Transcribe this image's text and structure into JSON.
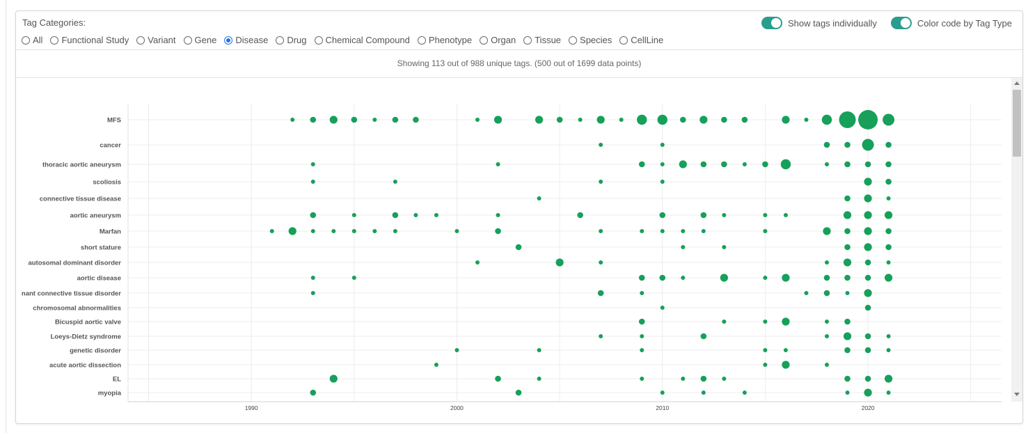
{
  "filters": {
    "label": "Tag Categories:",
    "options": [
      "All",
      "Functional Study",
      "Variant",
      "Gene",
      "Disease",
      "Drug",
      "Chemical Compound",
      "Phenotype",
      "Organ",
      "Tissue",
      "Species",
      "CellLine"
    ],
    "selected": "Disease"
  },
  "toggles": {
    "show_individually": {
      "label": "Show tags individually",
      "on": true
    },
    "color_code": {
      "label": "Color code by Tag Type",
      "on": true
    }
  },
  "summary": "Showing 113 out of 988 unique tags. (500 out of 1699 data points)",
  "colors": {
    "accent": "#2a9d8f",
    "dot": "#16a05a",
    "radio": "#1e73e8"
  },
  "chart_data": {
    "type": "scatter",
    "x_ticks": [
      1990,
      2000,
      2010,
      2020
    ],
    "xlim": [
      1984,
      2026.5
    ],
    "grid": true,
    "categories": [
      "MFS",
      "cancer",
      "thoracic aortic aneurysm",
      "scoliosis",
      "connective tissue disease",
      "aortic aneurysm",
      "Marfan",
      "short stature",
      "autosomal dominant disorder",
      "aortic disease",
      "nant connective tissue disorder",
      "chromosomal abnormalities",
      "Bicuspid aortic valve",
      "Loeys-Dietz syndrome",
      "genetic disorder",
      "acute aortic dissection",
      "EL",
      "myopia"
    ],
    "series": [
      {
        "category": "MFS",
        "points": [
          [
            1992,
            1
          ],
          [
            1993,
            2
          ],
          [
            1994,
            3
          ],
          [
            1995,
            2
          ],
          [
            1996,
            1
          ],
          [
            1997,
            2
          ],
          [
            1998,
            2
          ],
          [
            2001,
            1
          ],
          [
            2002,
            3
          ],
          [
            2004,
            3
          ],
          [
            2005,
            2
          ],
          [
            2006,
            1
          ],
          [
            2007,
            3
          ],
          [
            2008,
            1
          ],
          [
            2009,
            4
          ],
          [
            2010,
            4
          ],
          [
            2011,
            2
          ],
          [
            2012,
            3
          ],
          [
            2013,
            2
          ],
          [
            2014,
            2
          ],
          [
            2016,
            3
          ],
          [
            2017,
            1
          ],
          [
            2018,
            4
          ],
          [
            2019,
            7
          ],
          [
            2020,
            8
          ],
          [
            2021,
            5
          ]
        ]
      },
      {
        "category": "cancer",
        "points": [
          [
            2007,
            1
          ],
          [
            2010,
            1
          ],
          [
            2018,
            2
          ],
          [
            2019,
            2
          ],
          [
            2020,
            5
          ],
          [
            2021,
            2
          ]
        ]
      },
      {
        "category": "thoracic aortic aneurysm",
        "points": [
          [
            1993,
            1
          ],
          [
            2002,
            1
          ],
          [
            2009,
            2
          ],
          [
            2010,
            1
          ],
          [
            2011,
            3
          ],
          [
            2012,
            2
          ],
          [
            2013,
            2
          ],
          [
            2014,
            1
          ],
          [
            2015,
            2
          ],
          [
            2016,
            4
          ],
          [
            2018,
            1
          ],
          [
            2019,
            2
          ],
          [
            2020,
            2
          ],
          [
            2021,
            2
          ]
        ]
      },
      {
        "category": "scoliosis",
        "points": [
          [
            1993,
            1
          ],
          [
            1997,
            1
          ],
          [
            2007,
            1
          ],
          [
            2010,
            1
          ],
          [
            2020,
            3
          ],
          [
            2021,
            2
          ]
        ]
      },
      {
        "category": "connective tissue disease",
        "points": [
          [
            2004,
            1
          ],
          [
            2019,
            2
          ],
          [
            2020,
            3
          ],
          [
            2021,
            1
          ]
        ]
      },
      {
        "category": "aortic aneurysm",
        "points": [
          [
            1993,
            2
          ],
          [
            1995,
            1
          ],
          [
            1997,
            2
          ],
          [
            1998,
            1
          ],
          [
            1999,
            1
          ],
          [
            2002,
            1
          ],
          [
            2006,
            2
          ],
          [
            2010,
            2
          ],
          [
            2012,
            2
          ],
          [
            2013,
            1
          ],
          [
            2015,
            1
          ],
          [
            2016,
            1
          ],
          [
            2019,
            3
          ],
          [
            2020,
            3
          ],
          [
            2021,
            3
          ]
        ]
      },
      {
        "category": "Marfan",
        "points": [
          [
            1991,
            1
          ],
          [
            1992,
            3
          ],
          [
            1993,
            1
          ],
          [
            1994,
            1
          ],
          [
            1995,
            1
          ],
          [
            1996,
            1
          ],
          [
            1997,
            1
          ],
          [
            2000,
            1
          ],
          [
            2002,
            2
          ],
          [
            2007,
            1
          ],
          [
            2009,
            1
          ],
          [
            2010,
            1
          ],
          [
            2011,
            1
          ],
          [
            2012,
            1
          ],
          [
            2015,
            1
          ],
          [
            2018,
            3
          ],
          [
            2019,
            2
          ],
          [
            2020,
            3
          ],
          [
            2021,
            2
          ]
        ]
      },
      {
        "category": "short stature",
        "points": [
          [
            2003,
            2
          ],
          [
            2011,
            1
          ],
          [
            2013,
            1
          ],
          [
            2019,
            2
          ],
          [
            2020,
            3
          ],
          [
            2021,
            2
          ]
        ]
      },
      {
        "category": "autosomal dominant disorder",
        "points": [
          [
            2001,
            1
          ],
          [
            2005,
            3
          ],
          [
            2007,
            1
          ],
          [
            2018,
            1
          ],
          [
            2019,
            3
          ],
          [
            2020,
            2
          ],
          [
            2021,
            1
          ]
        ]
      },
      {
        "category": "aortic disease",
        "points": [
          [
            1993,
            1
          ],
          [
            1995,
            1
          ],
          [
            2009,
            2
          ],
          [
            2010,
            2
          ],
          [
            2011,
            1
          ],
          [
            2013,
            3
          ],
          [
            2015,
            1
          ],
          [
            2016,
            3
          ],
          [
            2018,
            2
          ],
          [
            2019,
            2
          ],
          [
            2020,
            2
          ],
          [
            2021,
            3
          ]
        ]
      },
      {
        "category": "nant connective tissue disorder",
        "points": [
          [
            1993,
            1
          ],
          [
            2007,
            2
          ],
          [
            2009,
            1
          ],
          [
            2017,
            1
          ],
          [
            2018,
            2
          ],
          [
            2019,
            1
          ],
          [
            2020,
            3
          ]
        ]
      },
      {
        "category": "chromosomal abnormalities",
        "points": [
          [
            2010,
            1
          ],
          [
            2020,
            2
          ]
        ]
      },
      {
        "category": "Bicuspid aortic valve",
        "points": [
          [
            2009,
            2
          ],
          [
            2013,
            1
          ],
          [
            2015,
            1
          ],
          [
            2016,
            3
          ],
          [
            2018,
            1
          ],
          [
            2019,
            2
          ]
        ]
      },
      {
        "category": "Loeys-Dietz syndrome",
        "points": [
          [
            2007,
            1
          ],
          [
            2009,
            1
          ],
          [
            2012,
            2
          ],
          [
            2018,
            1
          ],
          [
            2019,
            3
          ],
          [
            2020,
            2
          ],
          [
            2021,
            1
          ]
        ]
      },
      {
        "category": "genetic disorder",
        "points": [
          [
            2000,
            1
          ],
          [
            2004,
            1
          ],
          [
            2009,
            1
          ],
          [
            2015,
            1
          ],
          [
            2016,
            1
          ],
          [
            2019,
            2
          ],
          [
            2020,
            2
          ],
          [
            2021,
            1
          ]
        ]
      },
      {
        "category": "acute aortic dissection",
        "points": [
          [
            1999,
            1
          ],
          [
            2015,
            1
          ],
          [
            2016,
            3
          ],
          [
            2018,
            1
          ]
        ]
      },
      {
        "category": "EL",
        "points": [
          [
            1994,
            3
          ],
          [
            2002,
            2
          ],
          [
            2004,
            1
          ],
          [
            2009,
            1
          ],
          [
            2011,
            1
          ],
          [
            2012,
            2
          ],
          [
            2013,
            1
          ],
          [
            2019,
            2
          ],
          [
            2020,
            2
          ],
          [
            2021,
            3
          ]
        ]
      },
      {
        "category": "myopia",
        "points": [
          [
            1993,
            2
          ],
          [
            2003,
            2
          ],
          [
            2010,
            1
          ],
          [
            2012,
            1
          ],
          [
            2014,
            1
          ],
          [
            2019,
            1
          ],
          [
            2020,
            3
          ],
          [
            2021,
            1
          ]
        ]
      }
    ]
  }
}
